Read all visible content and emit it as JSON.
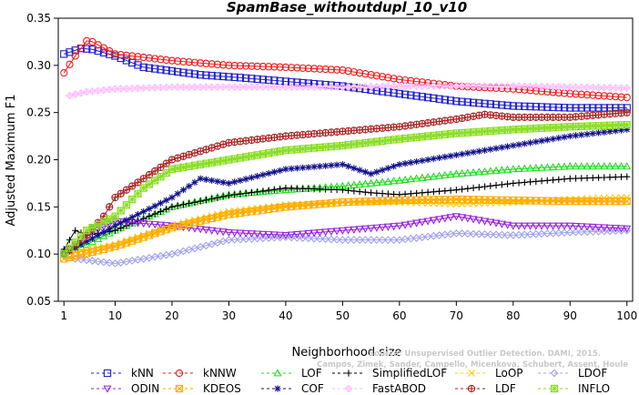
{
  "chart_data": {
    "type": "line",
    "title": "SpamBase_withoutdupl_10_v10",
    "xlabel": "Neighborhood size",
    "ylabel": "Adjusted Maximum F1",
    "xlim": [
      0,
      101
    ],
    "ylim": [
      0.05,
      0.35
    ],
    "xticks": [
      1,
      10,
      20,
      30,
      40,
      50,
      60,
      70,
      80,
      90,
      100
    ],
    "yticks": [
      0.05,
      0.1,
      0.15,
      0.2,
      0.25,
      0.3,
      0.35
    ],
    "grid": false,
    "legend_position": "bottom",
    "watermark": [
      "Source: Unsupervised Outlier Detection. DAMI, 2015.",
      "Campos, Zimek, Sander, Campello, Micenkova, Schubert, Assent, Houle"
    ],
    "series": [
      {
        "name": "kNN",
        "color": "#1f1fcc",
        "marker": "square",
        "knots": [
          [
            1,
            0.312
          ],
          [
            4,
            0.318
          ],
          [
            6,
            0.317
          ],
          [
            10,
            0.31
          ],
          [
            15,
            0.298
          ],
          [
            25,
            0.29
          ],
          [
            32,
            0.287
          ],
          [
            40,
            0.283
          ],
          [
            50,
            0.278
          ],
          [
            60,
            0.27
          ],
          [
            70,
            0.262
          ],
          [
            80,
            0.257
          ],
          [
            90,
            0.255
          ],
          [
            100,
            0.255
          ]
        ]
      },
      {
        "name": "kNNW",
        "color": "#ee1c1c",
        "marker": "circle",
        "knots": [
          [
            1,
            0.292
          ],
          [
            3,
            0.31
          ],
          [
            5,
            0.326
          ],
          [
            6,
            0.325
          ],
          [
            10,
            0.312
          ],
          [
            20,
            0.305
          ],
          [
            30,
            0.3
          ],
          [
            40,
            0.298
          ],
          [
            50,
            0.295
          ],
          [
            60,
            0.285
          ],
          [
            70,
            0.278
          ],
          [
            80,
            0.275
          ],
          [
            90,
            0.27
          ],
          [
            100,
            0.266
          ]
        ]
      },
      {
        "name": "LOF",
        "color": "#22dd22",
        "marker": "triangle",
        "knots": [
          [
            1,
            0.1
          ],
          [
            5,
            0.11
          ],
          [
            10,
            0.125
          ],
          [
            20,
            0.15
          ],
          [
            30,
            0.163
          ],
          [
            40,
            0.168
          ],
          [
            50,
            0.172
          ],
          [
            60,
            0.178
          ],
          [
            70,
            0.185
          ],
          [
            80,
            0.19
          ],
          [
            90,
            0.193
          ],
          [
            100,
            0.193
          ]
        ]
      },
      {
        "name": "SimplifiedLOF",
        "color": "#000000",
        "marker": "plus",
        "knots": [
          [
            1,
            0.105
          ],
          [
            3,
            0.125
          ],
          [
            5,
            0.12
          ],
          [
            10,
            0.125
          ],
          [
            20,
            0.15
          ],
          [
            30,
            0.162
          ],
          [
            40,
            0.17
          ],
          [
            50,
            0.168
          ],
          [
            55,
            0.165
          ],
          [
            60,
            0.163
          ],
          [
            70,
            0.168
          ],
          [
            80,
            0.175
          ],
          [
            90,
            0.18
          ],
          [
            100,
            0.182
          ]
        ]
      },
      {
        "name": "LoOP",
        "color": "#ffcc00",
        "marker": "x",
        "knots": [
          [
            1,
            0.1
          ],
          [
            10,
            0.11
          ],
          [
            20,
            0.13
          ],
          [
            30,
            0.145
          ],
          [
            40,
            0.152
          ],
          [
            50,
            0.155
          ],
          [
            60,
            0.155
          ],
          [
            70,
            0.153
          ],
          [
            80,
            0.155
          ],
          [
            90,
            0.158
          ],
          [
            100,
            0.16
          ]
        ]
      },
      {
        "name": "LDOF",
        "color": "#a0a0ee",
        "marker": "diamond",
        "knots": [
          [
            1,
            0.1
          ],
          [
            3,
            0.095
          ],
          [
            10,
            0.09
          ],
          [
            20,
            0.1
          ],
          [
            30,
            0.115
          ],
          [
            40,
            0.118
          ],
          [
            50,
            0.115
          ],
          [
            60,
            0.115
          ],
          [
            70,
            0.122
          ],
          [
            80,
            0.12
          ],
          [
            90,
            0.123
          ],
          [
            100,
            0.125
          ]
        ]
      },
      {
        "name": "ODIN",
        "color": "#9922dd",
        "marker": "down-triangle",
        "knots": [
          [
            1,
            0.1
          ],
          [
            5,
            0.12
          ],
          [
            10,
            0.135
          ],
          [
            20,
            0.13
          ],
          [
            30,
            0.123
          ],
          [
            40,
            0.12
          ],
          [
            50,
            0.125
          ],
          [
            60,
            0.13
          ],
          [
            70,
            0.14
          ],
          [
            80,
            0.13
          ],
          [
            90,
            0.13
          ],
          [
            100,
            0.127
          ]
        ]
      },
      {
        "name": "KDEOS",
        "color": "#ffaa00",
        "marker": "square-x",
        "knots": [
          [
            1,
            0.095
          ],
          [
            10,
            0.108
          ],
          [
            20,
            0.128
          ],
          [
            30,
            0.142
          ],
          [
            40,
            0.15
          ],
          [
            50,
            0.155
          ],
          [
            60,
            0.157
          ],
          [
            70,
            0.158
          ],
          [
            80,
            0.157
          ],
          [
            90,
            0.156
          ],
          [
            100,
            0.156
          ]
        ]
      },
      {
        "name": "COF",
        "color": "#11118c",
        "marker": "star",
        "knots": [
          [
            1,
            0.1
          ],
          [
            10,
            0.13
          ],
          [
            20,
            0.16
          ],
          [
            25,
            0.18
          ],
          [
            30,
            0.175
          ],
          [
            40,
            0.19
          ],
          [
            50,
            0.195
          ],
          [
            55,
            0.185
          ],
          [
            60,
            0.195
          ],
          [
            70,
            0.205
          ],
          [
            80,
            0.215
          ],
          [
            90,
            0.225
          ],
          [
            100,
            0.232
          ]
        ]
      },
      {
        "name": "FastABOD",
        "color": "#ffbbff",
        "marker": "diamond-plus",
        "knots": [
          [
            2,
            0.268
          ],
          [
            5,
            0.272
          ],
          [
            10,
            0.275
          ],
          [
            20,
            0.277
          ],
          [
            30,
            0.277
          ],
          [
            40,
            0.277
          ],
          [
            50,
            0.277
          ],
          [
            60,
            0.278
          ],
          [
            70,
            0.278
          ],
          [
            80,
            0.278
          ],
          [
            90,
            0.277
          ],
          [
            100,
            0.276
          ]
        ]
      },
      {
        "name": "LDF",
        "color": "#aa2222",
        "marker": "circle-plus",
        "knots": [
          [
            1,
            0.1
          ],
          [
            5,
            0.12
          ],
          [
            8,
            0.14
          ],
          [
            10,
            0.16
          ],
          [
            20,
            0.2
          ],
          [
            30,
            0.218
          ],
          [
            40,
            0.225
          ],
          [
            50,
            0.23
          ],
          [
            60,
            0.235
          ],
          [
            70,
            0.243
          ],
          [
            75,
            0.248
          ],
          [
            80,
            0.245
          ],
          [
            90,
            0.245
          ],
          [
            100,
            0.25
          ]
        ]
      },
      {
        "name": "INFLO",
        "color": "#88dd22",
        "marker": "star-square",
        "knots": [
          [
            1,
            0.1
          ],
          [
            5,
            0.125
          ],
          [
            10,
            0.14
          ],
          [
            15,
            0.17
          ],
          [
            20,
            0.19
          ],
          [
            30,
            0.2
          ],
          [
            40,
            0.21
          ],
          [
            50,
            0.215
          ],
          [
            60,
            0.222
          ],
          [
            70,
            0.228
          ],
          [
            80,
            0.232
          ],
          [
            90,
            0.235
          ],
          [
            100,
            0.237
          ]
        ]
      }
    ]
  }
}
